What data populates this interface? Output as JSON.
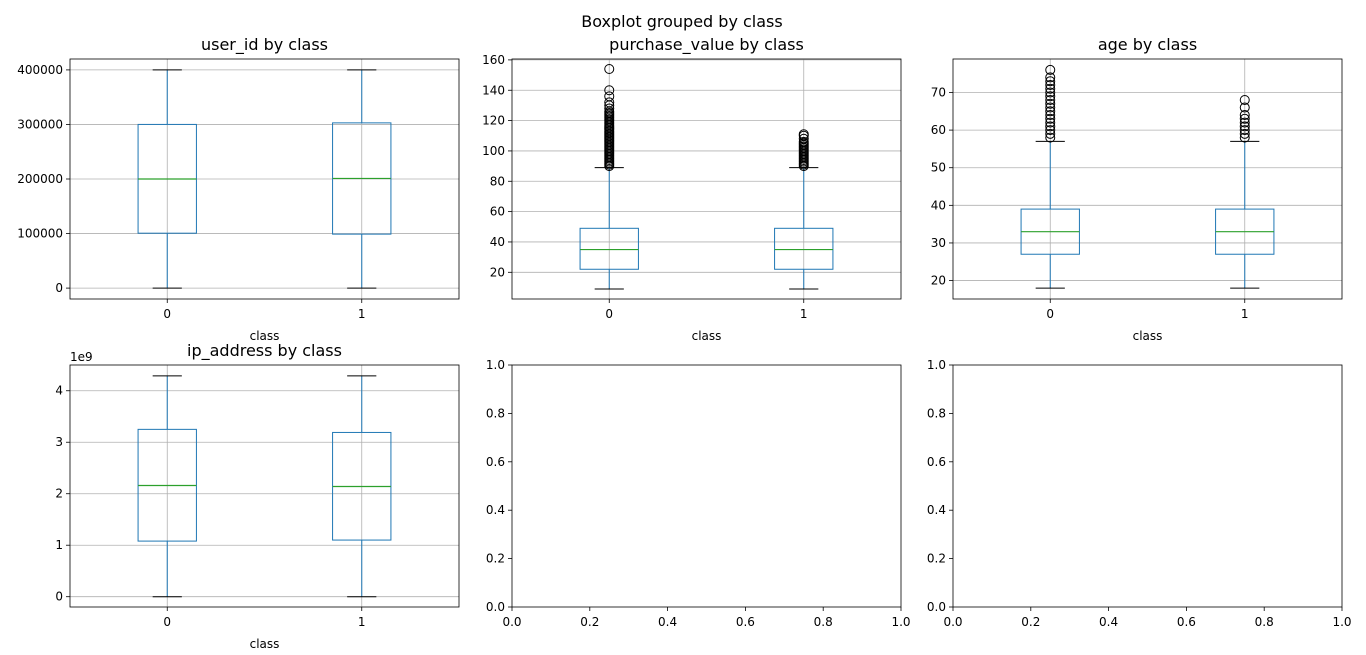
{
  "suptitle": "Boxplot grouped by class",
  "chart_data": [
    {
      "type": "box",
      "title": "user_id by class",
      "xlabel": "class",
      "ylabel": "",
      "categories": [
        "0",
        "1"
      ],
      "ylim": [
        -20000,
        420000
      ],
      "yticks": [
        0,
        100000,
        200000,
        300000,
        400000
      ],
      "ytick_labels": [
        "0",
        "100000",
        "200000",
        "300000",
        "400000"
      ],
      "offset_label": "",
      "grid": true,
      "boxes": [
        {
          "whisker_low": 2,
          "q1": 100642,
          "median": 199958,
          "q3": 300054,
          "whisker_high": 400000,
          "outliers": []
        },
        {
          "whisker_low": 6,
          "q1": 98940,
          "median": 201000,
          "q3": 302900,
          "whisker_high": 399980,
          "outliers": []
        }
      ]
    },
    {
      "type": "box",
      "title": "purchase_value by class",
      "xlabel": "class",
      "ylabel": "",
      "categories": [
        "0",
        "1"
      ],
      "ylim": [
        2.4,
        160.6
      ],
      "yticks": [
        20,
        40,
        60,
        80,
        100,
        120,
        140,
        160
      ],
      "ytick_labels": [
        "20",
        "40",
        "60",
        "80",
        "100",
        "120",
        "140",
        "160"
      ],
      "offset_label": "",
      "grid": true,
      "boxes": [
        {
          "whisker_low": 9,
          "q1": 22,
          "median": 35,
          "q3": 49,
          "whisker_high": 89,
          "outliers": [
            90,
            91,
            92,
            93,
            94,
            95,
            96,
            97,
            98,
            99,
            100,
            101,
            102,
            103,
            104,
            105,
            106,
            107,
            108,
            109,
            110,
            111,
            112,
            113,
            114,
            115,
            116,
            117,
            118,
            119,
            120,
            121,
            122,
            123,
            124,
            125,
            126,
            128,
            130,
            132,
            136,
            140,
            154
          ]
        },
        {
          "whisker_low": 9,
          "q1": 22,
          "median": 35,
          "q3": 49,
          "whisker_high": 89,
          "outliers": [
            90,
            91,
            92,
            93,
            94,
            95,
            96,
            97,
            98,
            99,
            100,
            101,
            102,
            103,
            104,
            105,
            106,
            108,
            110,
            111
          ]
        }
      ]
    },
    {
      "type": "box",
      "title": "age by class",
      "xlabel": "class",
      "ylabel": "",
      "categories": [
        "0",
        "1"
      ],
      "ylim": [
        15.1,
        78.9
      ],
      "yticks": [
        20,
        30,
        40,
        50,
        60,
        70
      ],
      "ytick_labels": [
        "20",
        "30",
        "40",
        "50",
        "60",
        "70"
      ],
      "offset_label": "",
      "grid": true,
      "boxes": [
        {
          "whisker_low": 18,
          "q1": 27,
          "median": 33,
          "q3": 39,
          "whisker_high": 57,
          "outliers": [
            58,
            59,
            60,
            61,
            62,
            63,
            64,
            65,
            66,
            67,
            68,
            69,
            70,
            71,
            72,
            73,
            74,
            76
          ]
        },
        {
          "whisker_low": 18,
          "q1": 27,
          "median": 33,
          "q3": 39,
          "whisker_high": 57,
          "outliers": [
            58,
            59,
            60,
            61,
            62,
            63,
            64,
            66,
            68
          ]
        }
      ]
    },
    {
      "type": "box",
      "title": "ip_address by class",
      "xlabel": "class",
      "ylabel": "",
      "categories": [
        "0",
        "1"
      ],
      "ylim": [
        -0.2,
        4.5
      ],
      "yticks": [
        0,
        1,
        2,
        3,
        4
      ],
      "ytick_labels": [
        "0",
        "1",
        "2",
        "3",
        "4"
      ],
      "offset_label": "1e9",
      "grid": true,
      "boxes": [
        {
          "whisker_low": 0.0,
          "q1": 1.08,
          "median": 2.16,
          "q3": 3.25,
          "whisker_high": 4.29,
          "outliers": []
        },
        {
          "whisker_low": 0.0,
          "q1": 1.1,
          "median": 2.14,
          "q3": 3.19,
          "whisker_high": 4.29,
          "outliers": []
        }
      ]
    },
    {
      "type": "empty",
      "title": "",
      "xlabel": "",
      "ylabel": "",
      "xlim": [
        0,
        1
      ],
      "ylim": [
        0,
        1
      ],
      "xticks": [
        0,
        0.2,
        0.4,
        0.6,
        0.8,
        1.0
      ],
      "xtick_labels": [
        "0.0",
        "0.2",
        "0.4",
        "0.6",
        "0.8",
        "1.0"
      ],
      "yticks": [
        0,
        0.2,
        0.4,
        0.6,
        0.8,
        1.0
      ],
      "ytick_labels": [
        "0.0",
        "0.2",
        "0.4",
        "0.6",
        "0.8",
        "1.0"
      ],
      "grid": false
    },
    {
      "type": "empty",
      "title": "",
      "xlabel": "",
      "ylabel": "",
      "xlim": [
        0,
        1
      ],
      "ylim": [
        0,
        1
      ],
      "xticks": [
        0,
        0.2,
        0.4,
        0.6,
        0.8,
        1.0
      ],
      "xtick_labels": [
        "0.0",
        "0.2",
        "0.4",
        "0.6",
        "0.8",
        "1.0"
      ],
      "yticks": [
        0,
        0.2,
        0.4,
        0.6,
        0.8,
        1.0
      ],
      "ytick_labels": [
        "0.0",
        "0.2",
        "0.4",
        "0.6",
        "0.8",
        "1.0"
      ],
      "grid": false
    }
  ],
  "colors": {
    "box": "#1f77b4",
    "median": "#2ca02c",
    "grid": "#b0b0b0",
    "axis": "#000000",
    "outlier_edge": "#000000"
  }
}
